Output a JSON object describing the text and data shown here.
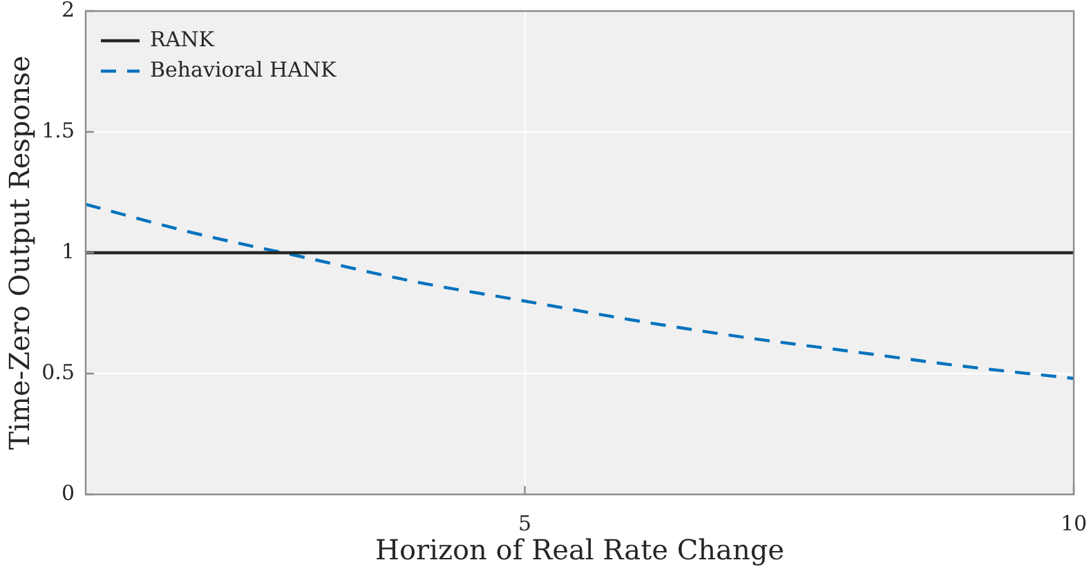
{
  "chart_data": {
    "type": "line",
    "xlabel": "Horizon of Real Rate Change",
    "ylabel": "Time-Zero Output Response",
    "series": [
      {
        "name": "RANK",
        "color": "#262626",
        "line_style": "solid",
        "x": [
          1,
          10
        ],
        "values": [
          1,
          1
        ]
      },
      {
        "name": "Behavioral HANK",
        "color": "#0072bd",
        "line_style": "dashed",
        "x": [
          1,
          2,
          3,
          4,
          5,
          6,
          7,
          8,
          9,
          10
        ],
        "values": [
          1.2,
          1.08,
          0.98,
          0.88,
          0.8,
          0.72,
          0.65,
          0.59,
          0.53,
          0.48
        ]
      }
    ],
    "xlim": [
      1,
      10
    ],
    "ylim": [
      0,
      2
    ],
    "xticks": [
      5,
      10
    ],
    "yticks": [
      0,
      0.5,
      1,
      1.5,
      2
    ],
    "grid": true,
    "legend": "top left"
  }
}
